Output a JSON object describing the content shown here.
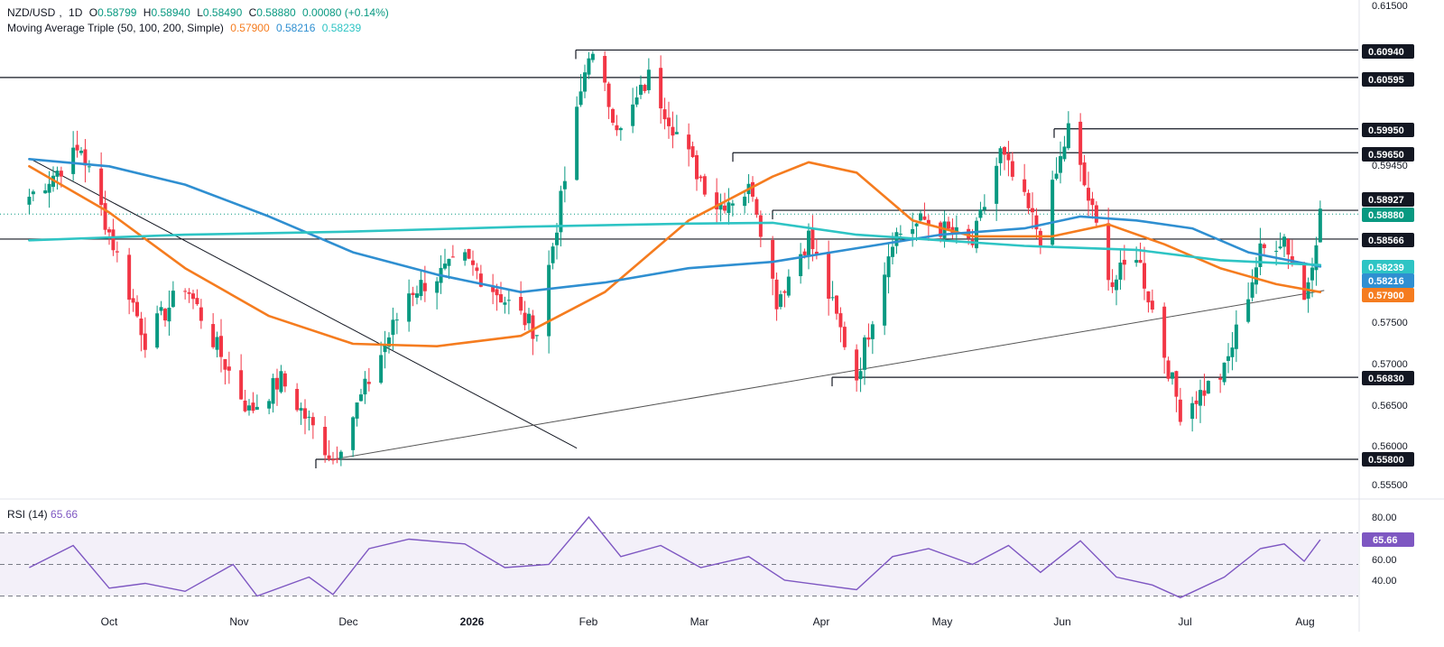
{
  "header": {
    "symbol": "NZD/USD",
    "interval": "1D",
    "o_label": "O",
    "o_value": "0.58799",
    "h_label": "H",
    "h_value": "0.58940",
    "l_label": "L",
    "l_value": "0.58490",
    "c_label": "C",
    "c_value": "0.58880",
    "change": "0.00080 (+0.14%)"
  },
  "ma_header": {
    "name": "Moving Average Triple (50, 100, 200, Simple)",
    "ma50": "0.57900",
    "ma100": "0.58216",
    "ma200": "0.58239"
  },
  "rsi_header": {
    "name": "RSI (14)",
    "value": "65.66"
  },
  "colors": {
    "up": "#089981",
    "down": "#f23645",
    "ma50": "#f57c1f",
    "ma100": "#2f8fd1",
    "ma200": "#2ec4c4",
    "rsi": "#7e57c2",
    "axis_text": "#131722"
  },
  "chart_data": {
    "type": "candlestick",
    "symbol": "NZD/USD",
    "timeframe": "1D",
    "y_axis_ticks": [
      "0.61500",
      "0.59450",
      "0.57500",
      "0.57000",
      "0.56500",
      "0.56000",
      "0.55500"
    ],
    "price_labels": [
      {
        "value": "0.60940",
        "style": "dark"
      },
      {
        "value": "0.60595",
        "style": "dark"
      },
      {
        "value": "0.59950",
        "style": "dark"
      },
      {
        "value": "0.59650",
        "style": "dark"
      },
      {
        "value": "0.58927",
        "style": "dark"
      },
      {
        "value": "0.58880",
        "style": "green"
      },
      {
        "value": "0.58566",
        "style": "dark"
      },
      {
        "value": "0.58239",
        "style": "cyan"
      },
      {
        "value": "0.58216",
        "style": "blue"
      },
      {
        "value": "0.57900",
        "style": "orange"
      },
      {
        "value": "0.56830",
        "style": "dark"
      },
      {
        "value": "0.55800",
        "style": "dark"
      }
    ],
    "x_axis_labels": [
      {
        "label": "Oct",
        "bold": false
      },
      {
        "label": "Nov",
        "bold": false
      },
      {
        "label": "Dec",
        "bold": false
      },
      {
        "label": "2026",
        "bold": true
      },
      {
        "label": "Feb",
        "bold": false
      },
      {
        "label": "Mar",
        "bold": false
      },
      {
        "label": "Apr",
        "bold": false
      },
      {
        "label": "May",
        "bold": false
      },
      {
        "label": "Jun",
        "bold": false
      },
      {
        "label": "Jul",
        "bold": false
      },
      {
        "label": "Aug",
        "bold": false
      }
    ],
    "horizontal_levels": [
      0.6094,
      0.60595,
      0.5995,
      0.5965,
      0.58927,
      0.58566,
      0.5683,
      0.558
    ],
    "last_close": 0.5888,
    "trendlines": [
      {
        "from": [
          "2025-09-11",
          0.5958
        ],
        "to": [
          "2026-01-26",
          0.5594
        ]
      },
      {
        "from": [
          "2025-11-26",
          0.558
        ],
        "to": [
          "2026-08-01",
          0.5792
        ]
      }
    ],
    "key_swings": [
      {
        "date": "2025-09-11",
        "price": 0.591
      },
      {
        "date": "2025-09-24",
        "price": 0.597
      },
      {
        "date": "2025-10-10",
        "price": 0.573
      },
      {
        "date": "2025-10-20",
        "price": 0.58
      },
      {
        "date": "2025-11-05",
        "price": 0.564
      },
      {
        "date": "2025-11-13",
        "price": 0.568
      },
      {
        "date": "2025-11-26",
        "price": 0.558
      },
      {
        "date": "2025-12-15",
        "price": 0.579
      },
      {
        "date": "2025-12-29",
        "price": 0.583
      },
      {
        "date": "2026-01-16",
        "price": 0.574
      },
      {
        "date": "2026-01-29",
        "price": 0.6094
      },
      {
        "date": "2026-02-06",
        "price": 0.599
      },
      {
        "date": "2026-02-13",
        "price": 0.606
      },
      {
        "date": "2026-02-24",
        "price": 0.595
      },
      {
        "date": "2026-03-02",
        "price": 0.59
      },
      {
        "date": "2026-03-11",
        "price": 0.592
      },
      {
        "date": "2026-03-17",
        "price": 0.578
      },
      {
        "date": "2026-03-25",
        "price": 0.586
      },
      {
        "date": "2026-04-06",
        "price": 0.5683
      },
      {
        "date": "2026-04-15",
        "price": 0.586
      },
      {
        "date": "2026-04-23",
        "price": 0.588
      },
      {
        "date": "2026-05-05",
        "price": 0.585
      },
      {
        "date": "2026-05-12",
        "price": 0.5965
      },
      {
        "date": "2026-05-22",
        "price": 0.586
      },
      {
        "date": "2026-05-29",
        "price": 0.5995
      },
      {
        "date": "2026-06-09",
        "price": 0.58
      },
      {
        "date": "2026-06-15",
        "price": 0.584
      },
      {
        "date": "2026-06-26",
        "price": 0.564
      },
      {
        "date": "2026-07-07",
        "price": 0.569
      },
      {
        "date": "2026-07-16",
        "price": 0.584
      },
      {
        "date": "2026-07-22",
        "price": 0.586
      },
      {
        "date": "2026-07-27",
        "price": 0.578
      },
      {
        "date": "2026-07-31",
        "price": 0.5888
      }
    ],
    "ma_series": [
      {
        "name": "MA50",
        "points": [
          [
            "2025-09-11",
            0.5948
          ],
          [
            "2025-10-01",
            0.589
          ],
          [
            "2025-10-20",
            0.582
          ],
          [
            "2025-11-10",
            0.576
          ],
          [
            "2025-12-01",
            0.5725
          ],
          [
            "2025-12-22",
            0.5722
          ],
          [
            "2026-01-12",
            0.5735
          ],
          [
            "2026-02-02",
            0.579
          ],
          [
            "2026-02-23",
            0.588
          ],
          [
            "2026-03-16",
            0.5935
          ],
          [
            "2026-03-25",
            0.5953
          ],
          [
            "2026-04-06",
            0.594
          ],
          [
            "2026-04-20",
            0.588
          ],
          [
            "2026-05-05",
            0.586
          ],
          [
            "2026-05-25",
            0.586
          ],
          [
            "2026-06-08",
            0.5875
          ],
          [
            "2026-06-22",
            0.585
          ],
          [
            "2026-07-06",
            0.582
          ],
          [
            "2026-07-20",
            0.58
          ],
          [
            "2026-07-31",
            0.579
          ]
        ]
      },
      {
        "name": "MA100",
        "points": [
          [
            "2025-09-11",
            0.5957
          ],
          [
            "2025-10-01",
            0.5948
          ],
          [
            "2025-10-20",
            0.5925
          ],
          [
            "2025-11-10",
            0.5885
          ],
          [
            "2025-12-01",
            0.584
          ],
          [
            "2025-12-22",
            0.5812
          ],
          [
            "2026-01-12",
            0.579
          ],
          [
            "2026-02-02",
            0.5802
          ],
          [
            "2026-02-23",
            0.582
          ],
          [
            "2026-03-16",
            0.5828
          ],
          [
            "2026-04-06",
            0.5845
          ],
          [
            "2026-04-27",
            0.5862
          ],
          [
            "2026-05-18",
            0.587
          ],
          [
            "2026-06-01",
            0.5885
          ],
          [
            "2026-06-15",
            0.588
          ],
          [
            "2026-06-29",
            0.587
          ],
          [
            "2026-07-13",
            0.584
          ],
          [
            "2026-07-31",
            0.5822
          ]
        ]
      },
      {
        "name": "MA200",
        "points": [
          [
            "2025-09-11",
            0.5855
          ],
          [
            "2025-10-20",
            0.5862
          ],
          [
            "2025-12-01",
            0.5866
          ],
          [
            "2026-01-12",
            0.5872
          ],
          [
            "2026-02-23",
            0.5876
          ],
          [
            "2026-03-16",
            0.5877
          ],
          [
            "2026-04-06",
            0.5862
          ],
          [
            "2026-05-18",
            0.5848
          ],
          [
            "2026-06-15",
            0.5843
          ],
          [
            "2026-07-06",
            0.583
          ],
          [
            "2026-07-31",
            0.5824
          ]
        ]
      }
    ],
    "rsi": {
      "period": 14,
      "last": 65.66,
      "ticks": [
        "80.00",
        "60.00",
        "40.00"
      ],
      "levels": [
        70,
        50,
        30
      ],
      "points": [
        [
          "2025-09-11",
          48
        ],
        [
          "2025-09-22",
          62
        ],
        [
          "2025-10-01",
          35
        ],
        [
          "2025-10-10",
          38
        ],
        [
          "2025-10-20",
          33
        ],
        [
          "2025-11-01",
          50
        ],
        [
          "2025-11-07",
          30
        ],
        [
          "2025-11-20",
          42
        ],
        [
          "2025-11-26",
          31
        ],
        [
          "2025-12-05",
          60
        ],
        [
          "2025-12-15",
          66
        ],
        [
          "2025-12-29",
          63
        ],
        [
          "2026-01-08",
          48
        ],
        [
          "2026-01-19",
          50
        ],
        [
          "2026-01-29",
          80
        ],
        [
          "2026-02-06",
          55
        ],
        [
          "2026-02-16",
          62
        ],
        [
          "2026-02-26",
          48
        ],
        [
          "2026-03-10",
          55
        ],
        [
          "2026-03-19",
          40
        ],
        [
          "2026-04-06",
          34
        ],
        [
          "2026-04-15",
          55
        ],
        [
          "2026-04-24",
          60
        ],
        [
          "2026-05-05",
          50
        ],
        [
          "2026-05-14",
          62
        ],
        [
          "2026-05-22",
          45
        ],
        [
          "2026-06-01",
          65
        ],
        [
          "2026-06-10",
          42
        ],
        [
          "2026-06-19",
          37
        ],
        [
          "2026-06-26",
          29
        ],
        [
          "2026-07-07",
          42
        ],
        [
          "2026-07-16",
          60
        ],
        [
          "2026-07-22",
          63
        ],
        [
          "2026-07-27",
          52
        ],
        [
          "2026-07-31",
          65.66
        ]
      ]
    },
    "grid": false
  }
}
